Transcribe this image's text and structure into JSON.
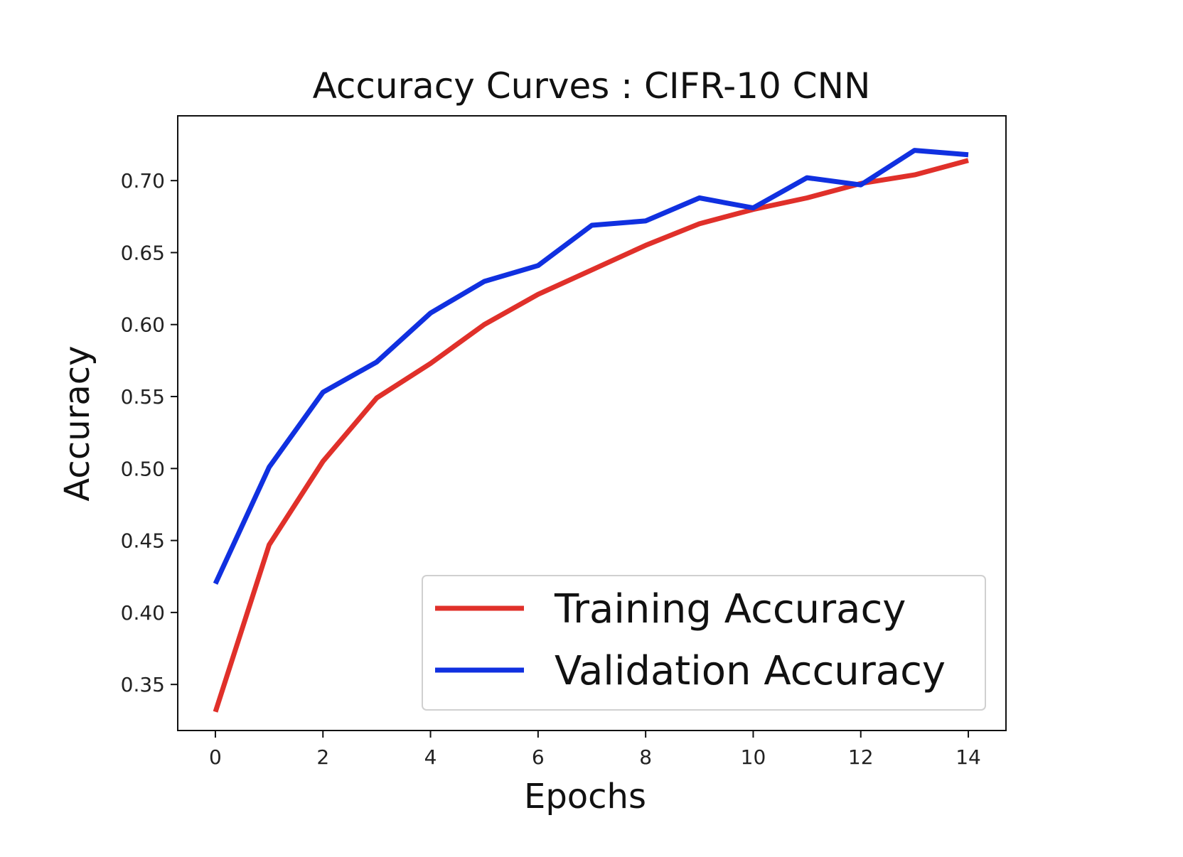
{
  "chart_data": {
    "type": "line",
    "title": "Accuracy Curves : CIFR-10 CNN",
    "xlabel": "Epochs",
    "ylabel": "Accuracy",
    "x": [
      0,
      1,
      2,
      3,
      4,
      5,
      6,
      7,
      8,
      9,
      10,
      11,
      12,
      13,
      14
    ],
    "xlim": [
      -0.7,
      14.7
    ],
    "ylim": [
      0.318,
      0.745
    ],
    "xticks": [
      0,
      2,
      4,
      6,
      8,
      10,
      12,
      14
    ],
    "xtick_labels": [
      "0",
      "2",
      "4",
      "6",
      "8",
      "10",
      "12",
      "14"
    ],
    "yticks": [
      0.35,
      0.4,
      0.45,
      0.5,
      0.55,
      0.6,
      0.65,
      0.7
    ],
    "ytick_labels": [
      "0.35",
      "0.40",
      "0.45",
      "0.50",
      "0.55",
      "0.60",
      "0.65",
      "0.70"
    ],
    "grid": false,
    "legend_position": "lower-right",
    "series": [
      {
        "name": "Training Accuracy",
        "color": "#e0302a",
        "values": [
          0.331,
          0.447,
          0.505,
          0.549,
          0.573,
          0.6,
          0.621,
          0.638,
          0.655,
          0.67,
          0.68,
          0.688,
          0.698,
          0.704,
          0.714
        ]
      },
      {
        "name": "Validation Accuracy",
        "color": "#1030e0",
        "values": [
          0.42,
          0.501,
          0.553,
          0.574,
          0.608,
          0.63,
          0.641,
          0.669,
          0.672,
          0.688,
          0.681,
          0.702,
          0.697,
          0.721,
          0.718
        ]
      }
    ]
  }
}
